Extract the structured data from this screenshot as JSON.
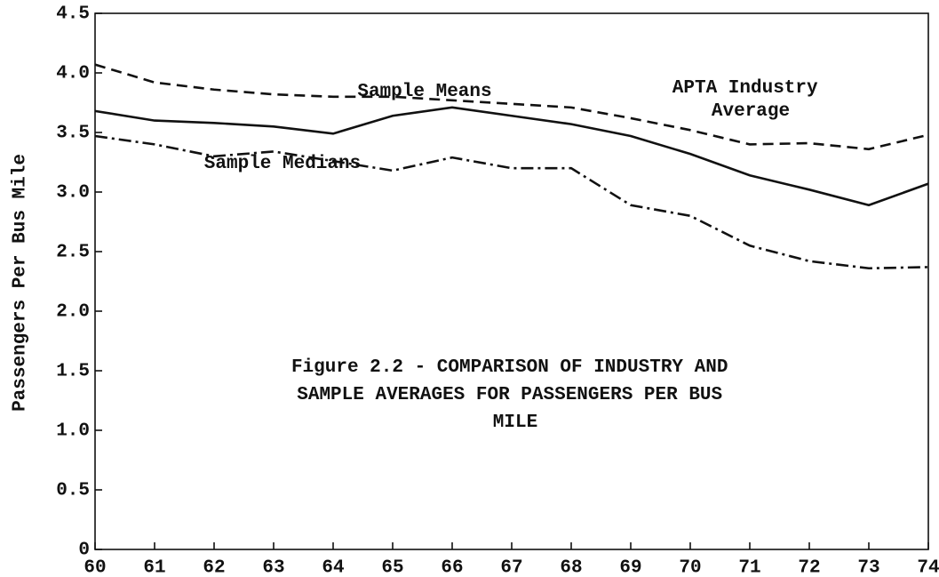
{
  "chart_data": {
    "type": "line",
    "title": "Figure 2.2 - COMPARISON OF INDUSTRY AND SAMPLE AVERAGES FOR PASSENGERS PER BUS MILE",
    "y_label": "Passengers Per Bus Mile",
    "x": [
      60,
      61,
      62,
      63,
      64,
      65,
      66,
      67,
      68,
      69,
      70,
      71,
      72,
      73,
      74
    ],
    "series": [
      {
        "name": "APTA Industry Average",
        "color": "#111111",
        "dash": "dashed",
        "values": [
          4.07,
          3.92,
          3.86,
          3.82,
          3.8,
          3.8,
          3.77,
          3.74,
          3.71,
          3.62,
          3.52,
          3.4,
          3.41,
          3.36,
          3.48
        ]
      },
      {
        "name": "Sample Means",
        "color": "#111111",
        "dash": "solid",
        "values": [
          3.68,
          3.6,
          3.58,
          3.55,
          3.49,
          3.64,
          3.71,
          3.64,
          3.57,
          3.47,
          3.32,
          3.14,
          3.02,
          2.89,
          3.07
        ]
      },
      {
        "name": "Sample Medians",
        "color": "#111111",
        "dash": "dashdot",
        "values": [
          3.47,
          3.4,
          3.3,
          3.34,
          3.26,
          3.18,
          3.29,
          3.2,
          3.2,
          2.89,
          2.8,
          2.55,
          2.42,
          2.36,
          2.37
        ]
      }
    ],
    "xlim": [
      60,
      74
    ],
    "xticks": [
      60,
      61,
      62,
      63,
      64,
      65,
      66,
      67,
      68,
      69,
      70,
      71,
      72,
      73,
      74
    ],
    "ylim": [
      0,
      4.5
    ],
    "yticks": [
      0,
      0.5,
      {
        "value": 1,
        "label": "1.0"
      },
      1.5,
      {
        "value": 2,
        "label": "2.0"
      },
      2.5,
      {
        "value": 3,
        "label": "3.0"
      },
      3.5,
      {
        "value": 4,
        "label": "4.0"
      },
      4.5
    ],
    "grid": false
  }
}
